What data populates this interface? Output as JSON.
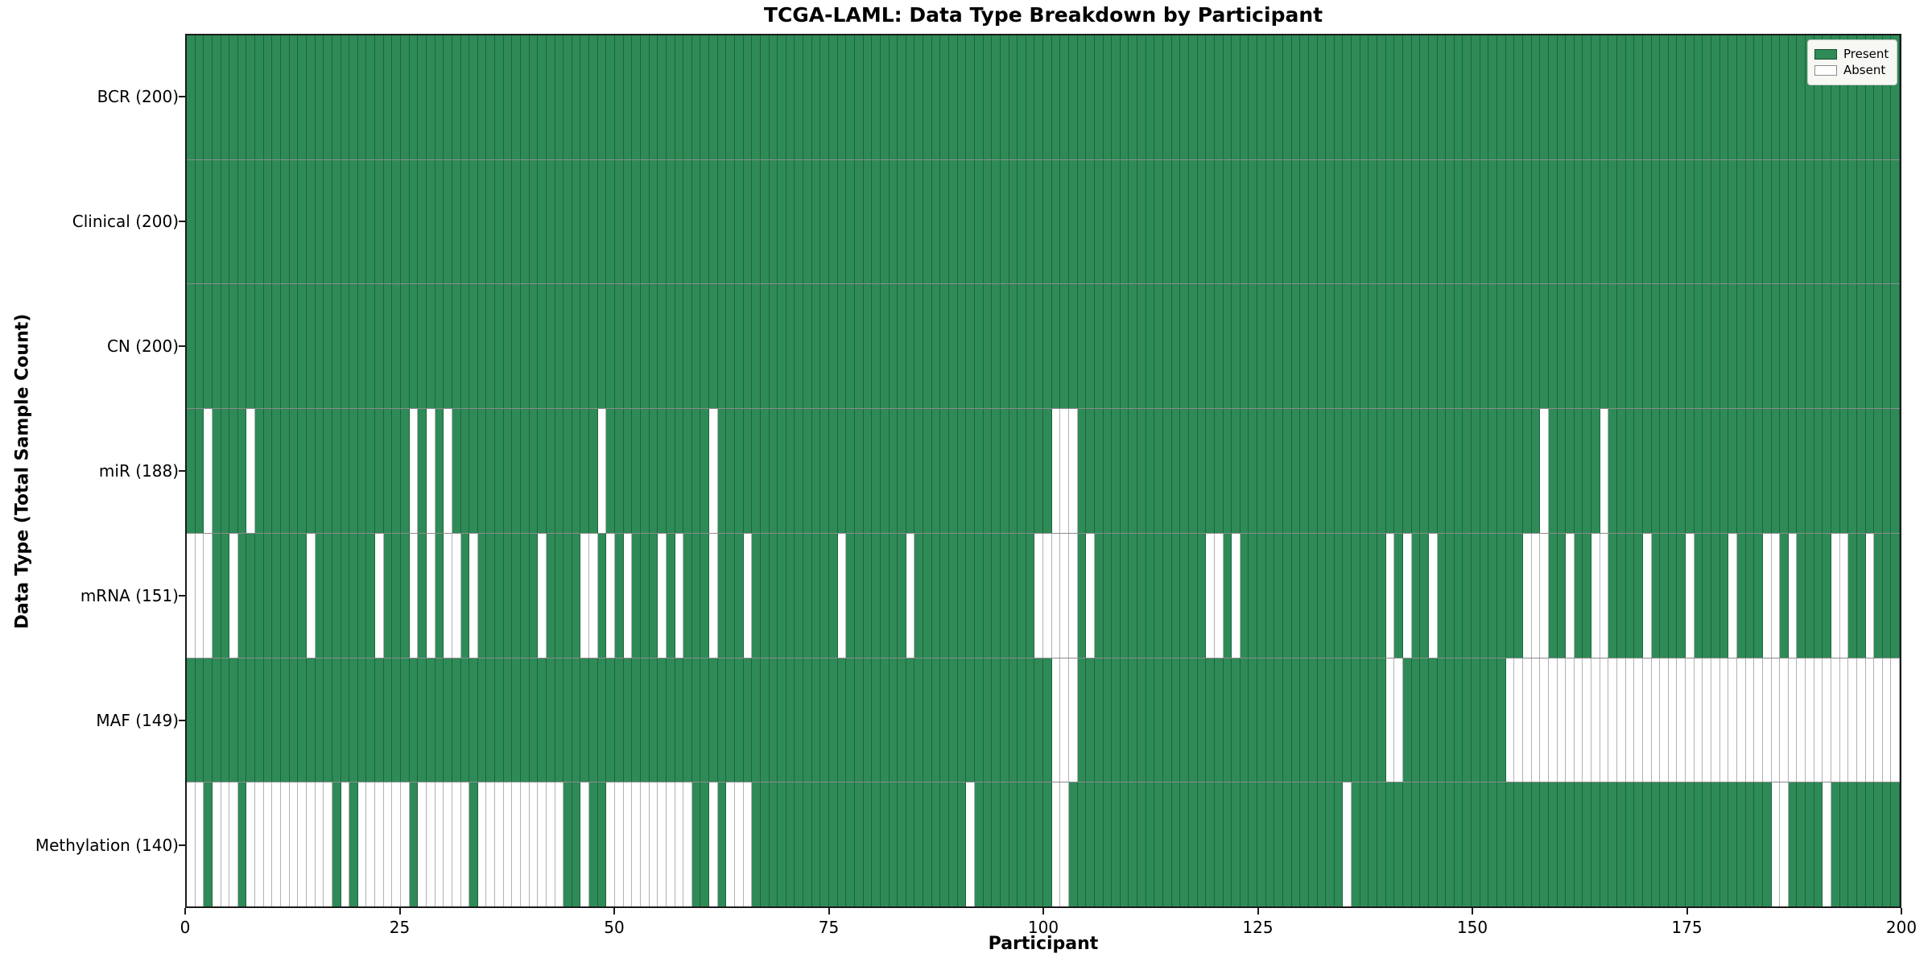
{
  "title": "TCGA-LAML: Data Type Breakdown by Participant",
  "x_axis": {
    "label": "Participant",
    "ticks": [
      0,
      25,
      50,
      75,
      100,
      125,
      150,
      175,
      200
    ],
    "range": [
      0,
      200
    ]
  },
  "y_axis": {
    "label": "Data Type (Total Sample Count)"
  },
  "legend": {
    "present_label": "Present",
    "absent_label": "Absent"
  },
  "colors": {
    "present": "#2e8b57",
    "absent": "#ffffff",
    "cell_edge": "rgba(0,0,0,0.30)",
    "spine": "#1a1a1a",
    "legend_bg": "#f7f7f4"
  },
  "chart_data": {
    "type": "heatmap",
    "x": "participant index 0-199",
    "n_participants": 200,
    "value_encoding": {
      "present": "green cell",
      "absent": "white cell"
    },
    "categories": [
      "BCR (200)",
      "Clinical (200)",
      "CN (200)",
      "miR (188)",
      "mRNA (151)",
      "MAF (149)",
      "Methylation (140)"
    ],
    "rows": [
      {
        "label": "BCR (200)",
        "data_type": "BCR",
        "total_present": 200,
        "absent_participants": []
      },
      {
        "label": "Clinical (200)",
        "data_type": "Clinical",
        "total_present": 200,
        "absent_participants": []
      },
      {
        "label": "CN (200)",
        "data_type": "CN",
        "total_present": 200,
        "absent_participants": []
      },
      {
        "label": "miR (188)",
        "data_type": "miR",
        "total_present": 188,
        "absent_participants": [
          2,
          7,
          26,
          28,
          30,
          48,
          61,
          101,
          102,
          103,
          158,
          165
        ]
      },
      {
        "label": "mRNA (151)",
        "data_type": "mRNA",
        "total_present": 151,
        "absent_participants": [
          0,
          1,
          2,
          5,
          14,
          22,
          26,
          28,
          30,
          31,
          33,
          41,
          46,
          47,
          49,
          51,
          55,
          57,
          61,
          65,
          76,
          84,
          99,
          100,
          101,
          102,
          103,
          105,
          119,
          120,
          122,
          140,
          142,
          145,
          156,
          157,
          158,
          161,
          164,
          165,
          170,
          175,
          180,
          184,
          185,
          187,
          192,
          193,
          196
        ]
      },
      {
        "label": "MAF (149)",
        "data_type": "MAF",
        "total_present": 149,
        "absent_participants": [
          101,
          102,
          103,
          140,
          141,
          154,
          155,
          156,
          157,
          158,
          159,
          160,
          161,
          162,
          163,
          164,
          165,
          166,
          167,
          168,
          169,
          170,
          171,
          172,
          173,
          174,
          175,
          176,
          177,
          178,
          179,
          180,
          181,
          182,
          183,
          184,
          185,
          186,
          187,
          188,
          189,
          190,
          191,
          192,
          193,
          194,
          195,
          196,
          197,
          198,
          199
        ]
      },
      {
        "label": "Methylation (140)",
        "data_type": "Methylation",
        "total_present": 140,
        "absent_participants": [
          0,
          1,
          3,
          4,
          5,
          7,
          8,
          9,
          10,
          11,
          12,
          13,
          14,
          15,
          16,
          18,
          20,
          21,
          22,
          23,
          24,
          25,
          27,
          28,
          29,
          30,
          31,
          32,
          34,
          35,
          36,
          37,
          38,
          39,
          40,
          41,
          42,
          43,
          46,
          49,
          50,
          51,
          52,
          53,
          54,
          55,
          56,
          57,
          58,
          61,
          63,
          64,
          65,
          91,
          101,
          102,
          135,
          185,
          186,
          191
        ]
      }
    ],
    "title": "TCGA-LAML: Data Type Breakdown by Participant",
    "xlabel": "Participant",
    "ylabel": "Data Type (Total Sample Count)",
    "legend_position": "upper right",
    "grid": "per-cell edges"
  }
}
